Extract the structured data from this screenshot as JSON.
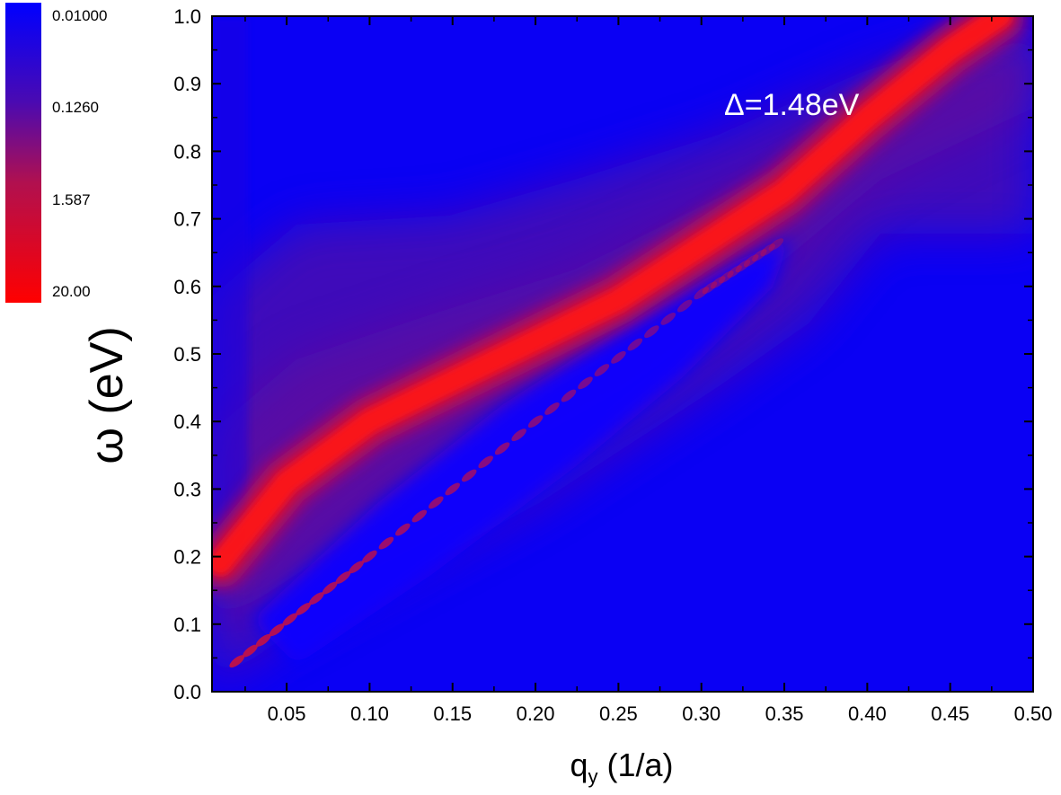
{
  "chart_data": {
    "type": "heatmap",
    "title": "",
    "xlabel_main": "q",
    "xlabel_sub": "y",
    "xlabel_unit": " (1/a)",
    "ylabel": "ω (eV)",
    "xlim": [
      0.005,
      0.5
    ],
    "ylim": [
      0.0,
      1.0
    ],
    "x_ticks": [
      0.05,
      0.1,
      0.15,
      0.2,
      0.25,
      0.3,
      0.35,
      0.4,
      0.45,
      0.5
    ],
    "x_tick_labels": [
      "0.05",
      "0.10",
      "0.15",
      "0.20",
      "0.25",
      "0.30",
      "0.35",
      "0.40",
      "0.45",
      "0.50"
    ],
    "y_ticks": [
      0.0,
      0.1,
      0.2,
      0.3,
      0.4,
      0.5,
      0.6,
      0.7,
      0.8,
      0.9,
      1.0
    ],
    "y_tick_labels": [
      "0.0",
      "0.1",
      "0.2",
      "0.3",
      "0.4",
      "0.5",
      "0.6",
      "0.7",
      "0.8",
      "0.9",
      "1.0"
    ],
    "colorscale": {
      "scale": "log",
      "min_color": "#0000ff",
      "mid_color": "#8a0a6e",
      "max_color": "#ff0000",
      "labels": [
        "0.01000",
        "0.1260",
        "1.587",
        "20.00"
      ]
    },
    "annotation": "Δ=1.48eV",
    "features": {
      "plasmon_ridge": [
        [
          0.01,
          0.19
        ],
        [
          0.05,
          0.31
        ],
        [
          0.1,
          0.4
        ],
        [
          0.15,
          0.46
        ],
        [
          0.2,
          0.52
        ],
        [
          0.25,
          0.58
        ],
        [
          0.3,
          0.66
        ],
        [
          0.35,
          0.74
        ],
        [
          0.4,
          0.85
        ],
        [
          0.45,
          0.95
        ],
        [
          0.48,
          1.0
        ]
      ],
      "lower_branch": [
        [
          0.02,
          0.045
        ],
        [
          0.1,
          0.2
        ],
        [
          0.2,
          0.4
        ],
        [
          0.3,
          0.59
        ],
        [
          0.35,
          0.67
        ]
      ]
    },
    "grid": false,
    "legend": "colorbar-left"
  }
}
